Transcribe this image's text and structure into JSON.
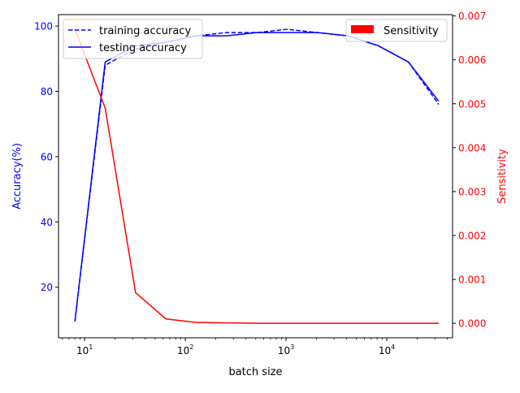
{
  "chart_data": {
    "type": "line",
    "xlabel": "batch size",
    "x_scale": "log",
    "xlim": [
      5.5,
      45000
    ],
    "x_tick_labels": [
      {
        "value": 10,
        "base": "10",
        "exp": "1"
      },
      {
        "value": 100,
        "base": "10",
        "exp": "2"
      },
      {
        "value": 1000,
        "base": "10",
        "exp": "3"
      },
      {
        "value": 10000,
        "base": "10",
        "exp": "4"
      }
    ],
    "left_axis": {
      "label": "Accuracy(%)",
      "color": "#0000ff",
      "ylim": [
        4.5,
        103.5
      ],
      "ticks": [
        20,
        40,
        60,
        80,
        100
      ],
      "tick_labels": [
        "20",
        "40",
        "60",
        "80",
        "100"
      ]
    },
    "right_axis": {
      "label": "Sensitivity",
      "color": "#ff0000",
      "ylim": [
        -0.00033,
        0.00703
      ],
      "ticks": [
        0.0,
        0.001,
        0.002,
        0.003,
        0.004,
        0.005,
        0.006,
        0.007
      ],
      "tick_labels": [
        "0.000",
        "0.001",
        "0.002",
        "0.003",
        "0.004",
        "0.005",
        "0.006",
        "0.007"
      ]
    },
    "x": [
      8,
      16,
      32,
      64,
      128,
      256,
      512,
      1024,
      2048,
      4096,
      8192,
      16384,
      32768
    ],
    "series": [
      {
        "name": "training accuracy",
        "axis": "left",
        "color": "#0000ff",
        "dash": "dashed",
        "values": [
          9.5,
          88,
          93,
          95,
          97,
          98,
          98,
          99,
          98,
          97,
          94,
          89,
          76
        ]
      },
      {
        "name": "testing accuracy",
        "axis": "left",
        "color": "#0000ff",
        "dash": "solid",
        "values": [
          9.5,
          89,
          94,
          95,
          97,
          97,
          98,
          98,
          98,
          97,
          94,
          89,
          77
        ]
      },
      {
        "name": "Sensitivity",
        "axis": "right",
        "color": "#ff0000",
        "dash": "solid",
        "values": [
          0.0067,
          0.0049,
          0.0007,
          0.0001,
          2e-05,
          1e-05,
          0.0,
          0.0,
          0.0,
          0.0,
          0.0,
          0.0,
          0.0
        ]
      }
    ],
    "legends": [
      {
        "placement": "top-left",
        "entries": [
          "training accuracy",
          "testing accuracy"
        ]
      },
      {
        "placement": "top-right",
        "entries": [
          "Sensitivity"
        ]
      }
    ],
    "grid": false
  }
}
